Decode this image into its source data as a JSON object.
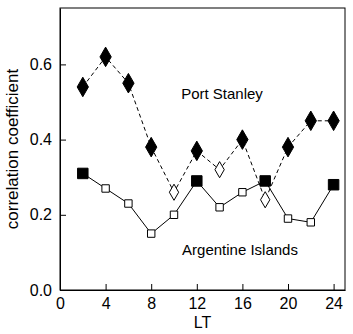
{
  "chart_data": {
    "type": "line",
    "xlabel": "LT",
    "ylabel": "correlation coefficient",
    "x": [
      2,
      4,
      6,
      8,
      10,
      12,
      14,
      16,
      18,
      20,
      22,
      24
    ],
    "xlim": [
      0,
      25
    ],
    "xticks": [
      0,
      4,
      8,
      12,
      16,
      20,
      24
    ],
    "ylim": [
      0,
      0.75
    ],
    "yticks": [
      {
        "value": 0,
        "label": "0.0"
      },
      {
        "value": 0.2,
        "label": "0.2"
      },
      {
        "value": 0.4,
        "label": "0.4"
      },
      {
        "value": 0.6,
        "label": "0.6"
      }
    ],
    "series": [
      {
        "name": "Port Stanley",
        "color": "#000000",
        "marker": "diamond",
        "line_style": "dashed",
        "colors": [
          "#000000",
          "#000000",
          "#000000",
          "#000000",
          "#ffffff",
          "#000000",
          "#ffffff",
          "#000000",
          "#ffffff",
          "#000000",
          "#000000",
          "#000000"
        ],
        "values": [
          0.54,
          0.62,
          0.55,
          0.38,
          0.26,
          0.37,
          0.32,
          0.4,
          0.24,
          0.38,
          0.45,
          0.45
        ]
      },
      {
        "name": "Argentine Islands",
        "color": "#000000",
        "marker": "square",
        "line_style": "solid",
        "colors": [
          "#000000",
          "#ffffff",
          "#ffffff",
          "#ffffff",
          "#ffffff",
          "#000000",
          "#ffffff",
          "#ffffff",
          "#000000",
          "#ffffff",
          "#ffffff",
          "#000000"
        ],
        "values": [
          0.31,
          0.27,
          0.23,
          0.15,
          0.2,
          0.29,
          0.22,
          0.26,
          0.29,
          0.19,
          0.18,
          0.28
        ]
      }
    ]
  }
}
